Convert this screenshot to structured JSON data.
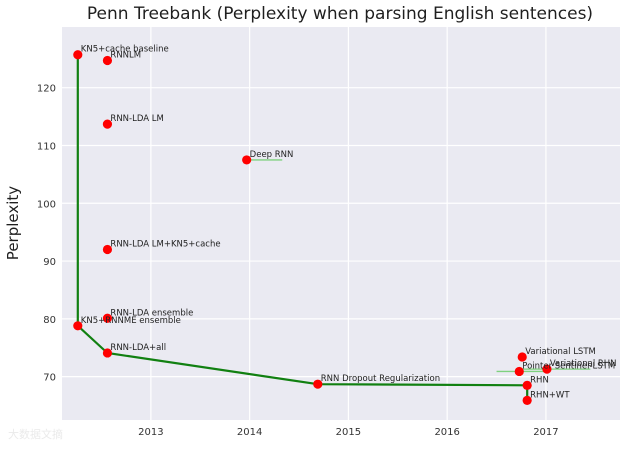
{
  "chart_data": {
    "type": "scatter",
    "title": "Penn Treebank (Perplexity when parsing English sentences)",
    "xlabel": "",
    "ylabel": "Perplexity",
    "xlim": [
      2012.1,
      2017.75
    ],
    "ylim": [
      62.5,
      130.5
    ],
    "xticks": [
      2013,
      2014,
      2015,
      2016,
      2017
    ],
    "yticks": [
      70,
      80,
      90,
      100,
      110,
      120
    ],
    "grid": true,
    "colors": {
      "background": "#eaeaf2",
      "points": "#ff0000",
      "frontier": "#118011",
      "error_bars": "#7fd17f"
    },
    "points": [
      {
        "label": "KN5+cache baseline",
        "x": 2012.26,
        "y": 125.7
      },
      {
        "label": "RNNLM",
        "x": 2012.56,
        "y": 124.7
      },
      {
        "label": "RNN-LDA LM",
        "x": 2012.56,
        "y": 113.7
      },
      {
        "label": "Deep RNN",
        "x": 2013.97,
        "y": 107.5,
        "xerr": [
          2013.97,
          2014.33
        ]
      },
      {
        "label": "RNN-LDA LM+KN5+cache",
        "x": 2012.56,
        "y": 92.0
      },
      {
        "label": "RNN-LDA ensemble",
        "x": 2012.56,
        "y": 80.1
      },
      {
        "label": "KN5+RNNME ensemble",
        "x": 2012.26,
        "y": 78.8
      },
      {
        "label": "RNN-LDA+all",
        "x": 2012.56,
        "y": 74.1
      },
      {
        "label": "RNN Dropout Regularization",
        "x": 2014.69,
        "y": 68.7
      },
      {
        "label": "Variational LSTM",
        "x": 2016.76,
        "y": 73.4
      },
      {
        "label": "Variational RHN",
        "x": 2017.01,
        "y": 71.3,
        "xerr": [
          2016.7,
          2017.45
        ]
      },
      {
        "label": "Pointer Sentinel-LSTM",
        "x": 2016.73,
        "y": 70.9,
        "xerr": [
          2016.5,
          2017.0
        ]
      },
      {
        "label": "RHN",
        "x": 2016.81,
        "y": 68.5
      },
      {
        "label": "RHN+WT",
        "x": 2016.81,
        "y": 65.9
      }
    ],
    "frontier": [
      {
        "x": 2012.26,
        "y": 125.7
      },
      {
        "x": 2012.26,
        "y": 78.8
      },
      {
        "x": 2012.56,
        "y": 74.1
      },
      {
        "x": 2014.69,
        "y": 68.7
      },
      {
        "x": 2016.81,
        "y": 68.5
      },
      {
        "x": 2016.81,
        "y": 65.9
      }
    ]
  },
  "watermark": "大数据文摘"
}
